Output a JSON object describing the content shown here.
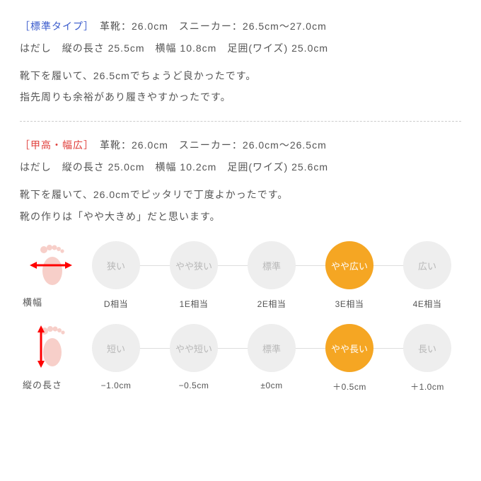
{
  "colors": {
    "text": "#555555",
    "label_blue": "#3a5bcc",
    "label_red": "#e0413d",
    "circle_inactive_bg": "#eeeeee",
    "circle_inactive_text": "#b8b8b8",
    "circle_active_bg": "#f5a623",
    "circle_active_text": "#ffffff",
    "foot_fill": "#f7cfc9",
    "arrow_red": "#ff0000"
  },
  "section1": {
    "label": "［標準タイプ］",
    "line1_rest": "　革靴：26.0cm　スニーカー：26.5cm〜27.0cm",
    "line2": "はだし　縦の長さ 25.5cm　横幅 10.8cm　足囲(ワイズ) 25.0cm",
    "body1": "靴下を履いて、26.5cmでちょうど良かったです。",
    "body2": "指先周りも余裕があり履きやすかったです。"
  },
  "section2": {
    "label": "［甲高・幅広］",
    "line1_rest": "　革靴：26.0cm　スニーカー：26.0cm〜26.5cm",
    "line2": "はだし　縦の長さ 25.0cm　横幅 10.2cm　足囲(ワイズ) 25.6cm",
    "body1": "靴下を履いて、26.0cmでピッタリで丁度よかったです。",
    "body2": "靴の作りは「やや大きめ」だと思います。"
  },
  "width_scale": {
    "axis_label": "横幅",
    "active_index": 3,
    "items": [
      {
        "label": "狭い",
        "sub": "D相当"
      },
      {
        "label": "やや狭い",
        "sub": "1E相当"
      },
      {
        "label": "標準",
        "sub": "2E相当"
      },
      {
        "label": "やや広い",
        "sub": "3E相当"
      },
      {
        "label": "広い",
        "sub": "4E相当"
      }
    ]
  },
  "length_scale": {
    "axis_label": "縦の長さ",
    "active_index": 3,
    "items": [
      {
        "label": "短い",
        "sub": "−1.0cm"
      },
      {
        "label": "やや短い",
        "sub": "−0.5cm"
      },
      {
        "label": "標準",
        "sub": "±0cm"
      },
      {
        "label": "やや長い",
        "sub": "＋0.5cm"
      },
      {
        "label": "長い",
        "sub": "＋1.0cm"
      }
    ]
  }
}
